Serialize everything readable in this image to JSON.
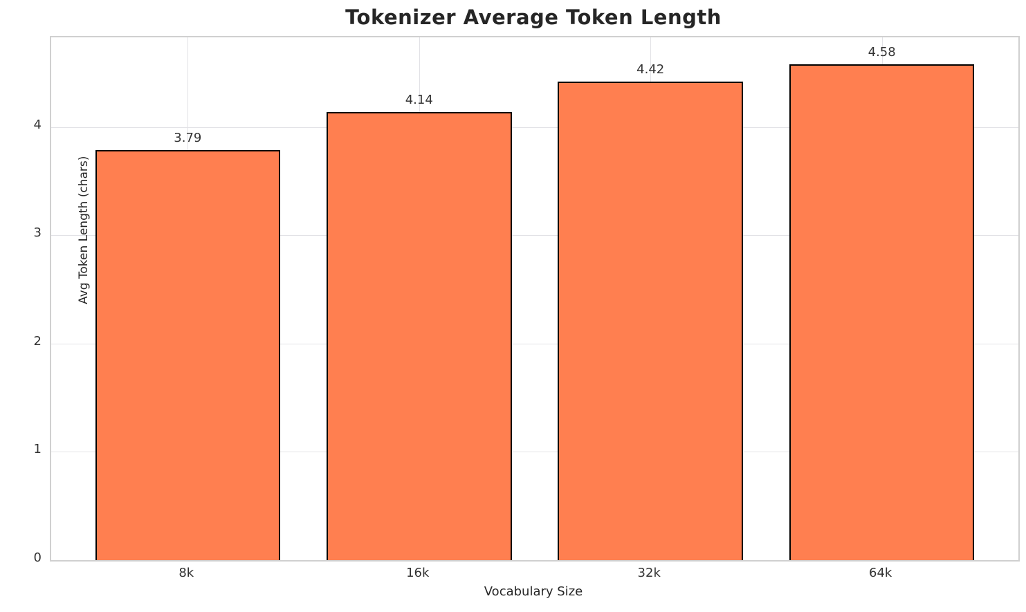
{
  "chart_data": {
    "type": "bar",
    "title": "Tokenizer Average Token Length",
    "xlabel": "Vocabulary Size",
    "ylabel": "Avg Token Length (chars)",
    "categories": [
      "8k",
      "16k",
      "32k",
      "64k"
    ],
    "values": [
      3.79,
      4.14,
      4.42,
      4.58
    ],
    "value_labels": [
      "3.79",
      "4.14",
      "4.42",
      "4.58"
    ],
    "ylim": [
      0,
      4.83
    ],
    "yticks": [
      0,
      1,
      2,
      3,
      4
    ],
    "grid": true,
    "legend": "none",
    "bar_color": "#FF7F50",
    "bar_edge_color": "#000000",
    "grid_color": "#e2e2e6",
    "spine_color": "#d0d0d0",
    "text_color": "#333333",
    "title_color": "#262626"
  }
}
